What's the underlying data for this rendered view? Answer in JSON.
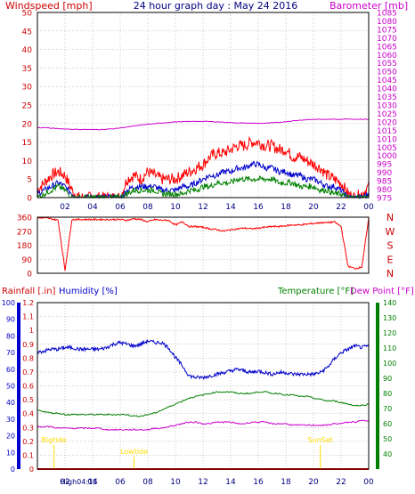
{
  "header": {
    "left_title": "Windspeed [mph]",
    "center_title": "24 hour graph day : May 24 2016",
    "right_title": "Barometer [mb]"
  },
  "colors": {
    "background": "#ffffff",
    "wind": "#ff0000",
    "gust": "#ff0000",
    "wind_avg": "#0000cc",
    "wind_low": "#008000",
    "barometer": "#cc00cc",
    "direction": "#ff0000",
    "rain": "#ff0000",
    "humidity": "#0000cc",
    "temperature": "#008000",
    "dewpoint": "#cc00cc",
    "sun_events": "#ffdd00",
    "grid": "#808080"
  },
  "time_axis": {
    "tick_labels": [
      "02",
      "04",
      "06",
      "08",
      "10",
      "12",
      "14",
      "16",
      "18",
      "20",
      "22",
      "00"
    ],
    "bottom_labels": [
      "02",
      "04",
      "06",
      "08",
      "10",
      "12",
      "14",
      "16",
      "18",
      "20",
      "22",
      "00"
    ],
    "bottom_overlay": "High04:15"
  },
  "chart_data": [
    {
      "type": "line",
      "title": "24 hour graph day : May 24 2016",
      "ylabel": "Windspeed [mph]",
      "ylabel_right": "Barometer [mb]",
      "ylim": [
        0,
        50
      ],
      "yticks": [
        "0",
        "5",
        "10",
        "15",
        "20",
        "25",
        "30",
        "35",
        "40",
        "45",
        "50"
      ],
      "ylim_right": [
        975,
        1085
      ],
      "yticks_right": [
        "975",
        "980",
        "985",
        "990",
        "995",
        "1000",
        "1005",
        "1010",
        "1015",
        "1020",
        "1025",
        "1030",
        "1035",
        "1040",
        "1045",
        "1050",
        "1055",
        "1060",
        "1065",
        "1070",
        "1075",
        "1080",
        "1085"
      ],
      "x": [
        0,
        0.5,
        1,
        1.5,
        2,
        2.5,
        3,
        3.5,
        4,
        4.5,
        5,
        5.5,
        6,
        6.5,
        7,
        7.5,
        8,
        8.5,
        9,
        9.5,
        10,
        10.5,
        11,
        11.5,
        12,
        12.5,
        13,
        13.5,
        14,
        14.5,
        15,
        15.5,
        16,
        16.5,
        17,
        17.5,
        18,
        18.5,
        19,
        19.5,
        20,
        20.5,
        21,
        21.5,
        22,
        22.5,
        23,
        23.5,
        24
      ],
      "series": [
        {
          "name": "gust",
          "axis": "left",
          "values": [
            2,
            4,
            6,
            7,
            6,
            2,
            0,
            0,
            0,
            0,
            0,
            0,
            0,
            5,
            6,
            5,
            7,
            6,
            5,
            5,
            5,
            6,
            7,
            8,
            9,
            11,
            12,
            12,
            13,
            14,
            14,
            15,
            15,
            14,
            14,
            13,
            13,
            11,
            11,
            10,
            9,
            8,
            6,
            5,
            4,
            1,
            0,
            1,
            3
          ]
        },
        {
          "name": "average",
          "axis": "left",
          "values": [
            1,
            2,
            3,
            4,
            3,
            1,
            0,
            0,
            0,
            0,
            0,
            0,
            0,
            2,
            3,
            3,
            3,
            3,
            2,
            2,
            2,
            3,
            3,
            4,
            5,
            6,
            6,
            7,
            7,
            8,
            8,
            9,
            9,
            8,
            8,
            7,
            7,
            6,
            6,
            5,
            5,
            4,
            3,
            3,
            2,
            0,
            0,
            0,
            1
          ]
        },
        {
          "name": "low",
          "axis": "left",
          "values": [
            0,
            1,
            2,
            3,
            2,
            0,
            0,
            0,
            0,
            0,
            0,
            0,
            0,
            1,
            2,
            2,
            2,
            2,
            1,
            1,
            1,
            1,
            2,
            2,
            3,
            3,
            4,
            4,
            4,
            5,
            5,
            5,
            5,
            5,
            5,
            4,
            4,
            4,
            3,
            3,
            3,
            2,
            2,
            1,
            1,
            0,
            0,
            0,
            0
          ]
        },
        {
          "name": "barometer",
          "axis": "right",
          "values": [
            1016.5,
            1016.6,
            1016.2,
            1016.0,
            1015.8,
            1015.6,
            1015.5,
            1015.5,
            1015.4,
            1015.5,
            1015.6,
            1015.9,
            1016.4,
            1016.9,
            1017.5,
            1018.1,
            1018.6,
            1018.9,
            1019.3,
            1019.7,
            1020.0,
            1020.1,
            1020.2,
            1020.3,
            1020.3,
            1020.2,
            1020.0,
            1019.8,
            1019.6,
            1019.4,
            1019.3,
            1019.2,
            1019.1,
            1019.2,
            1019.4,
            1019.7,
            1020.1,
            1020.6,
            1021.0,
            1021.3,
            1021.5,
            1021.5,
            1021.5,
            1021.5,
            1021.6,
            1021.7,
            1021.6,
            1021.6,
            1021.5
          ]
        }
      ]
    },
    {
      "type": "scatter",
      "ylabel_right": [
        "N",
        "W",
        "S",
        "E",
        "N"
      ],
      "ylim": [
        0,
        360
      ],
      "yticks": [
        "0",
        "90",
        "180",
        "270",
        "360"
      ],
      "x": [
        0,
        0.5,
        1,
        1.5,
        2,
        2.5,
        3,
        3.5,
        4,
        4.5,
        5,
        5.5,
        6,
        6.5,
        7,
        7.5,
        8,
        8.5,
        9,
        9.5,
        10,
        10.5,
        11,
        11.5,
        12,
        12.5,
        13,
        13.5,
        14,
        14.5,
        15,
        15.5,
        16,
        16.5,
        17,
        17.5,
        18,
        18.5,
        19,
        19.5,
        20,
        20.5,
        21,
        21.5,
        22,
        22.5,
        23,
        23.5,
        24
      ],
      "series": [
        {
          "name": "direction",
          "values": [
            355,
            355,
            350,
            340,
            20,
            345,
            345,
            345,
            345,
            345,
            345,
            345,
            345,
            340,
            350,
            345,
            330,
            345,
            340,
            340,
            310,
            330,
            300,
            300,
            295,
            285,
            280,
            270,
            280,
            285,
            290,
            285,
            290,
            295,
            300,
            300,
            305,
            310,
            310,
            315,
            320,
            325,
            325,
            330,
            300,
            45,
            30,
            40,
            350
          ]
        }
      ]
    },
    {
      "type": "line",
      "ylabel": "Rainfall [.in]",
      "ylabel_humidity": "Humidity [%]",
      "ylabel_right": "Temperature [°F]",
      "ylabel_right2": "Dew Point [°F]",
      "ylim_rain": [
        0,
        1.2
      ],
      "yticks_rain": [
        "0",
        "0.1",
        "0.2",
        "0.3",
        "0.4",
        "0.5",
        "0.6",
        "0.7",
        "0.8",
        "0.9",
        "1",
        "1.1",
        "1.2"
      ],
      "ylim_humidity": [
        0,
        100
      ],
      "yticks_humidity": [
        "0",
        "10",
        "20",
        "30",
        "40",
        "50",
        "60",
        "70",
        "80",
        "90",
        "100"
      ],
      "ylim_temperature": [
        30,
        140
      ],
      "yticks_temperature": [
        "40",
        "50",
        "60",
        "70",
        "80",
        "90",
        "100",
        "110",
        "120",
        "130",
        "140"
      ],
      "x": [
        0,
        0.5,
        1,
        1.5,
        2,
        2.5,
        3,
        3.5,
        4,
        4.5,
        5,
        5.5,
        6,
        6.5,
        7,
        7.5,
        8,
        8.5,
        9,
        9.5,
        10,
        10.5,
        11,
        11.5,
        12,
        12.5,
        13,
        13.5,
        14,
        14.5,
        15,
        15.5,
        16,
        16.5,
        17,
        17.5,
        18,
        18.5,
        19,
        19.5,
        20,
        20.5,
        21,
        21.5,
        22,
        22.5,
        23,
        23.5,
        24
      ],
      "series": [
        {
          "name": "humidity",
          "values": [
            70,
            71,
            72,
            72,
            73,
            73,
            72,
            72,
            72,
            72,
            73,
            75,
            76,
            75,
            74,
            75,
            77,
            76,
            76,
            73,
            67,
            62,
            56,
            55,
            55,
            56,
            57,
            58,
            59,
            60,
            59,
            58,
            59,
            58,
            57,
            58,
            58,
            57,
            57,
            57,
            57,
            58,
            61,
            66,
            70,
            72,
            74,
            73,
            74
          ]
        },
        {
          "name": "temperature",
          "values": [
            69,
            68,
            67,
            67,
            66,
            66,
            66,
            66,
            66,
            66,
            66,
            66,
            66,
            66,
            65,
            65,
            66,
            67,
            69,
            71,
            73,
            75,
            77,
            78,
            79,
            80,
            81,
            81,
            81,
            80,
            80,
            80,
            81,
            81,
            80,
            80,
            79,
            79,
            78,
            78,
            77,
            76,
            75,
            75,
            74,
            73,
            72,
            72,
            73
          ]
        },
        {
          "name": "dewpoint",
          "values": [
            58,
            58,
            58,
            57,
            57,
            57,
            57,
            57,
            57,
            57,
            56,
            56,
            56,
            56,
            56,
            56,
            56,
            57,
            57,
            58,
            59,
            60,
            61,
            61,
            60,
            60,
            61,
            61,
            61,
            60,
            60,
            61,
            61,
            61,
            60,
            60,
            60,
            59,
            59,
            59,
            59,
            59,
            59,
            60,
            60,
            61,
            61,
            62,
            62
          ]
        },
        {
          "name": "rainfall",
          "values": [
            0,
            0,
            0,
            0,
            0,
            0,
            0,
            0,
            0,
            0,
            0,
            0,
            0,
            0,
            0,
            0,
            0,
            0,
            0,
            0,
            0,
            0,
            0,
            0,
            0,
            0,
            0,
            0,
            0,
            0,
            0,
            0,
            0,
            0,
            0,
            0,
            0,
            0,
            0,
            0,
            0,
            0,
            0,
            0,
            0,
            0,
            0,
            0,
            0
          ]
        }
      ],
      "annotations": [
        {
          "label": "Bigtide",
          "x": 1.2
        },
        {
          "label": "Lowtide",
          "x": 7.0
        },
        {
          "label": "SunSet",
          "x": 20.5
        }
      ]
    }
  ]
}
